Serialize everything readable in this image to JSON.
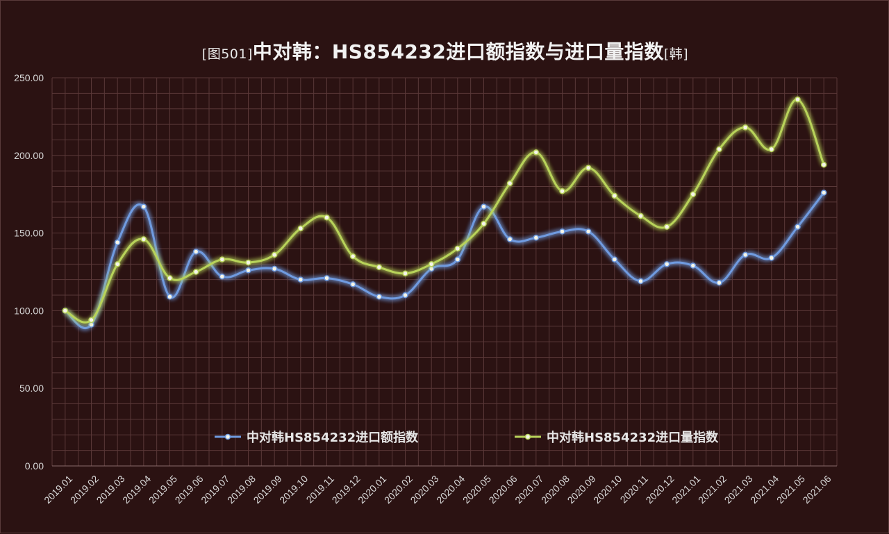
{
  "chart_data": {
    "type": "line",
    "title_prefix": "[图501]",
    "title_main": "中对韩：HS854232进口额指数与进口量指数",
    "title_suffix": "[韩]",
    "categories": [
      "2019.01",
      "2019.02",
      "2019.03",
      "2019.04",
      "2019.05",
      "2019.06",
      "2019.07",
      "2019.08",
      "2019.09",
      "2019.10",
      "2019.11",
      "2019.12",
      "2020.01",
      "2020.02",
      "2020.03",
      "2020.04",
      "2020.05",
      "2020.06",
      "2020.07",
      "2020.08",
      "2020.09",
      "2020.10",
      "2020.11",
      "2020.12",
      "2021.01",
      "2021.02",
      "2021.03",
      "2021.04",
      "2021.05",
      "2021.06"
    ],
    "ylim": [
      0,
      250
    ],
    "yticks": [
      "0.00",
      "50.00",
      "100.00",
      "150.00",
      "200.00",
      "250.00"
    ],
    "grid": true,
    "legend_position": "inside-bottom",
    "series": [
      {
        "name": "中对韩HS854232进口额指数",
        "color": "#6f9be0",
        "values": [
          100,
          91,
          144,
          167,
          109,
          138,
          122,
          126,
          127,
          120,
          121,
          117,
          109,
          110,
          127,
          133,
          167,
          146,
          147,
          151,
          151,
          133,
          119,
          130,
          129,
          118,
          136,
          134,
          154,
          176
        ]
      },
      {
        "name": "中对韩HS854232进口量指数",
        "color": "#b8d35a",
        "values": [
          100,
          94,
          130,
          146,
          121,
          125,
          133,
          131,
          136,
          153,
          160,
          135,
          128,
          124,
          130,
          140,
          156,
          182,
          202,
          177,
          192,
          174,
          161,
          154,
          175,
          204,
          218,
          204,
          236,
          194
        ]
      }
    ]
  }
}
